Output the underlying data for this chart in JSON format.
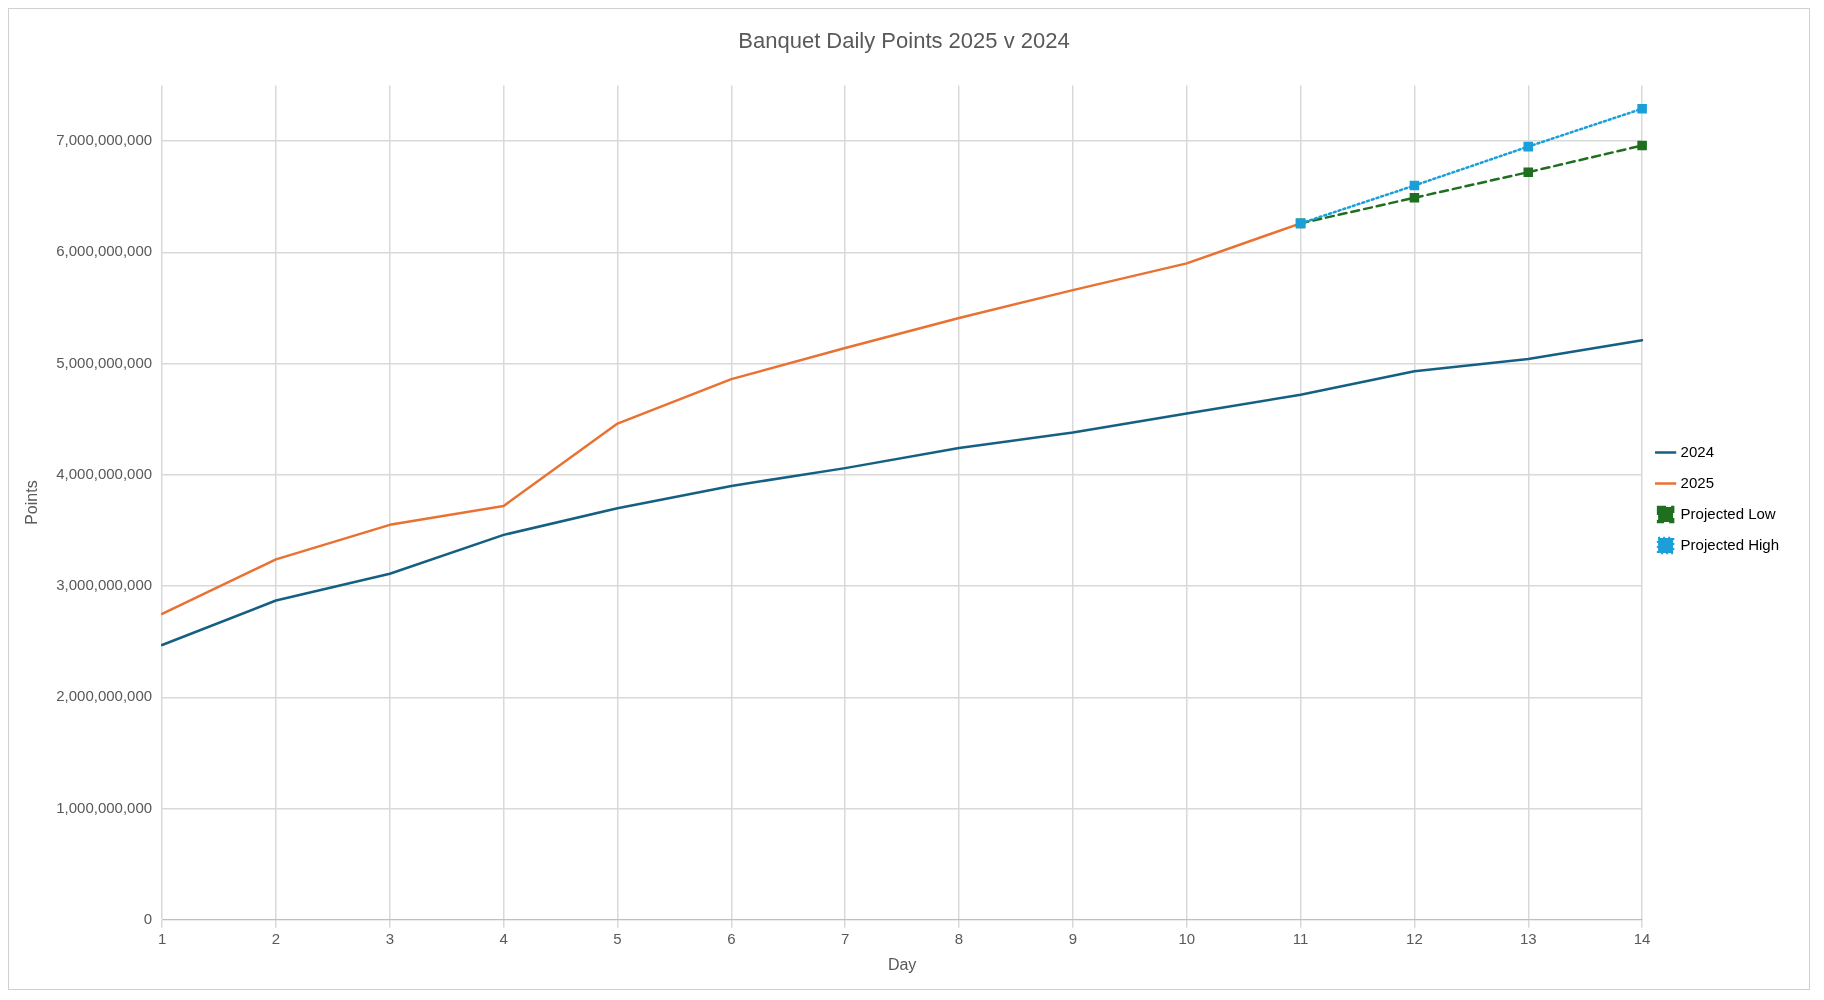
{
  "chart_data": {
    "type": "line",
    "title": "Banquet Daily Points 2025 v 2024",
    "xlabel": "Day",
    "ylabel": "Points",
    "categories": [
      "1",
      "2",
      "3",
      "4",
      "5",
      "6",
      "7",
      "8",
      "9",
      "10",
      "11",
      "12",
      "13",
      "14"
    ],
    "series": [
      {
        "name": "2024",
        "color": "#156082",
        "marker": "none",
        "line_style": "solid",
        "values": [
          2470000000,
          2870000000,
          3110000000,
          3460000000,
          3700000000,
          3900000000,
          4060000000,
          4240000000,
          4380000000,
          4550000000,
          4720000000,
          4930000000,
          5040000000,
          5210000000
        ]
      },
      {
        "name": "2025",
        "color": "#e97132",
        "marker": "none",
        "line_style": "solid",
        "values": [
          2750000000,
          3240000000,
          3550000000,
          3720000000,
          4460000000,
          4860000000,
          5140000000,
          5410000000,
          5660000000,
          5900000000,
          6260000000,
          null,
          null,
          null
        ]
      },
      {
        "name": "Projected Low",
        "color": "#1e6f1e",
        "marker": "square",
        "line_style": "dashed",
        "values": [
          null,
          null,
          null,
          null,
          null,
          null,
          null,
          null,
          null,
          null,
          6260000000,
          6490000000,
          6720000000,
          6960000000
        ]
      },
      {
        "name": "Projected High",
        "color": "#1a9fd9",
        "marker": "square",
        "line_style": "dotted",
        "values": [
          null,
          null,
          null,
          null,
          null,
          null,
          null,
          null,
          null,
          null,
          6260000000,
          6600000000,
          6950000000,
          7290000000
        ]
      }
    ],
    "ylim": [
      0,
      7500000000
    ],
    "yticks": [
      0,
      {
        "value": 1000000000,
        "label": "1,000,000,000"
      },
      {
        "value": 2000000000,
        "label": "2,000,000,000"
      },
      {
        "value": 3000000000,
        "label": "3,000,000,000"
      },
      {
        "value": 4000000000,
        "label": "4,000,000,000"
      },
      {
        "value": 5000000000,
        "label": "5,000,000,000"
      },
      {
        "value": 6000000000,
        "label": "6,000,000,000"
      },
      {
        "value": 7000000000,
        "label": "7,000,000,000"
      }
    ],
    "grid": true,
    "legend": "right"
  }
}
